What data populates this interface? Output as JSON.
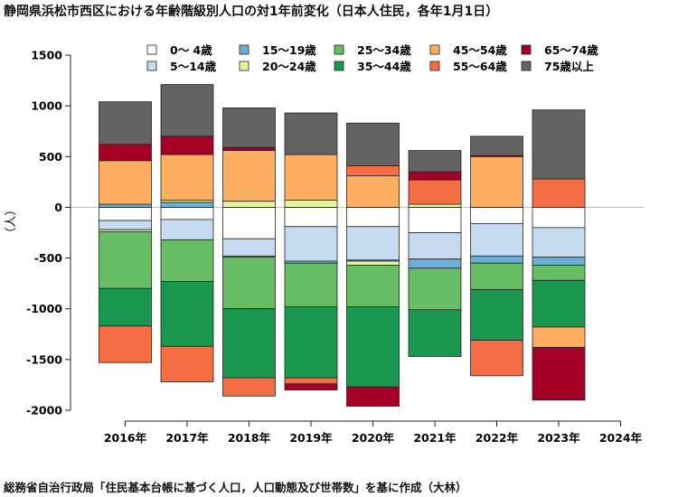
{
  "chart_data": {
    "type": "bar",
    "stacked": true,
    "title": "静岡県浜松市西区における年齢階級別人口の対1年前変化（日本人住民，各年1月1日）",
    "source": "総務省自治行政局「住民基本台帳に基づく人口，人口動態及び世帯数」を基に作成（大林）",
    "ylabel": "（人）",
    "xlabel": "",
    "ylim": [
      -2000,
      1500
    ],
    "yticks": [
      "-2000",
      "-1500",
      "-1000",
      "-500",
      "0",
      "500",
      "1000",
      "1500"
    ],
    "categories": [
      "2016年",
      "2017年",
      "2018年",
      "2019年",
      "2020年",
      "2021年",
      "2022年",
      "2023年",
      "2024年"
    ],
    "legend_position": "top",
    "grid": false,
    "series": [
      {
        "name": "0〜 4歳",
        "color": "#ffffff",
        "values": [
          -130,
          -120,
          -310,
          -190,
          -190,
          -250,
          -160,
          -200,
          null
        ]
      },
      {
        "name": "5〜14歳",
        "color": "#c6dbef",
        "values": [
          -90,
          -200,
          -170,
          -340,
          -330,
          -260,
          -320,
          -290,
          null
        ]
      },
      {
        "name": "15〜19歳",
        "color": "#6baed6",
        "values": [
          30,
          50,
          -10,
          -20,
          -10,
          -90,
          -70,
          -80,
          null
        ]
      },
      {
        "name": "20〜24歳",
        "color": "#e1f4a0",
        "values": [
          -20,
          20,
          60,
          70,
          -40,
          30,
          0,
          0,
          null
        ]
      },
      {
        "name": "25〜34歳",
        "color": "#66bd63",
        "values": [
          -560,
          -410,
          -510,
          -430,
          -410,
          -410,
          -260,
          -150,
          null
        ]
      },
      {
        "name": "35〜44歳",
        "color": "#1a9850",
        "values": [
          -370,
          -640,
          -680,
          -700,
          -790,
          -460,
          -500,
          -460,
          null
        ]
      },
      {
        "name": "45〜54歳",
        "color": "#fdae61",
        "values": [
          430,
          450,
          500,
          450,
          310,
          0,
          500,
          -200,
          null
        ]
      },
      {
        "name": "55〜64歳",
        "color": "#f46d43",
        "values": [
          -360,
          -350,
          -180,
          -60,
          100,
          240,
          -350,
          280,
          null
        ]
      },
      {
        "name": "65〜74歳",
        "color": "#a50026",
        "values": [
          160,
          180,
          30,
          -60,
          -190,
          80,
          10,
          -520,
          null
        ]
      },
      {
        "name": "75歳以上",
        "color": "#636363",
        "values": [
          420,
          510,
          390,
          410,
          420,
          210,
          190,
          680,
          null
        ]
      }
    ]
  }
}
